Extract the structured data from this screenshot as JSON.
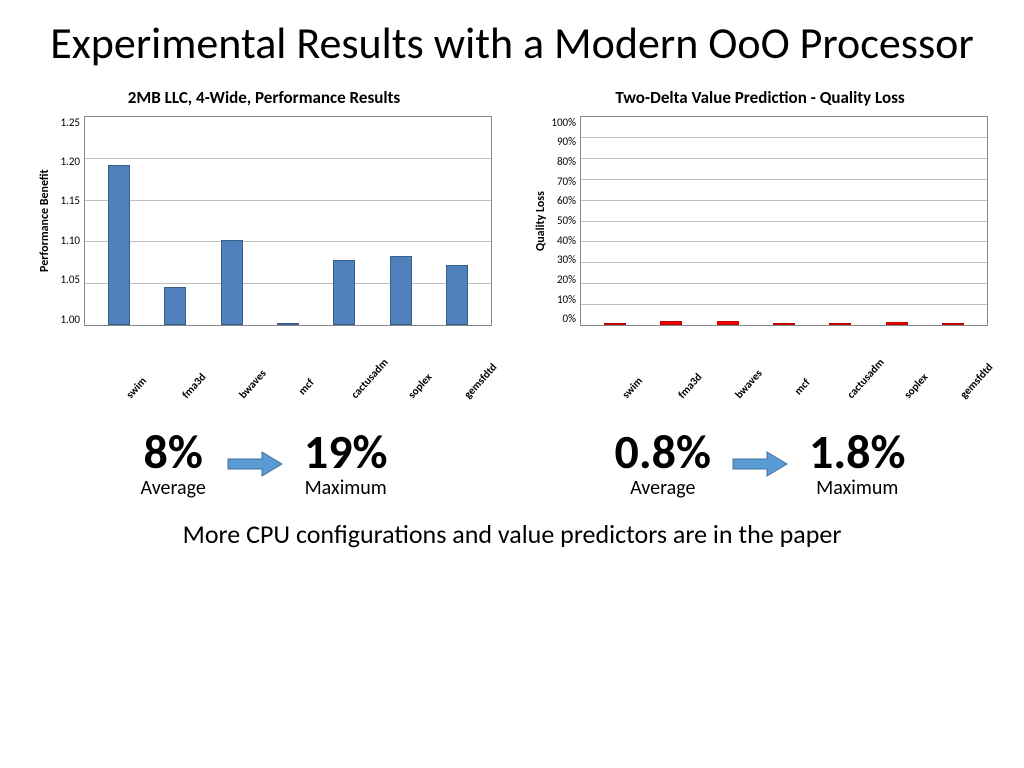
{
  "title": "Experimental Results with a Modern OoO Processor",
  "footer": "More CPU configurations and value predictors are in the paper",
  "arrow": {
    "fill": "#5b9bd5",
    "stroke": "#41719c"
  },
  "left_chart": {
    "type": "bar",
    "title": "2MB LLC, 4-Wide, Performance Results",
    "ylabel": "Performance Benefit",
    "ymin": 1.0,
    "ymax": 1.25,
    "yticks": [
      "1.25",
      "1.20",
      "1.15",
      "1.10",
      "1.05",
      "1.00"
    ],
    "categories": [
      "swim",
      "fma3d",
      "bwaves",
      "mcf",
      "cactusadm",
      "soplex",
      "gemsfdtd"
    ],
    "values": [
      1.192,
      1.045,
      1.102,
      1.001,
      1.078,
      1.082,
      1.072
    ],
    "bar_color": "#4f81bd",
    "bar_border": "#385d8a",
    "grid_color": "#bfbfbf",
    "border_color": "#888888",
    "background_color": "#ffffff",
    "summary": {
      "avg_value": "8%",
      "avg_label": "Average",
      "max_value": "19%",
      "max_label": "Maximum"
    }
  },
  "right_chart": {
    "type": "bar",
    "title": "Two-Delta Value Prediction - Quality Loss",
    "ylabel": "Quality Loss",
    "ymin": 0,
    "ymax": 100,
    "yticks": [
      "100%",
      "90%",
      "80%",
      "70%",
      "60%",
      "50%",
      "40%",
      "30%",
      "20%",
      "10%",
      "0%"
    ],
    "categories": [
      "swim",
      "fma3d",
      "bwaves",
      "mcf",
      "cactusadm",
      "soplex",
      "gemsfdtd"
    ],
    "values": [
      0.2,
      1.5,
      1.8,
      0.1,
      0.6,
      1.4,
      0.1
    ],
    "bar_color": "#ff0000",
    "bar_border": "#c00000",
    "grid_color": "#bfbfbf",
    "border_color": "#888888",
    "background_color": "#ffffff",
    "summary": {
      "avg_value": "0.8%",
      "avg_label": "Average",
      "max_value": "1.8%",
      "max_label": "Maximum"
    }
  }
}
